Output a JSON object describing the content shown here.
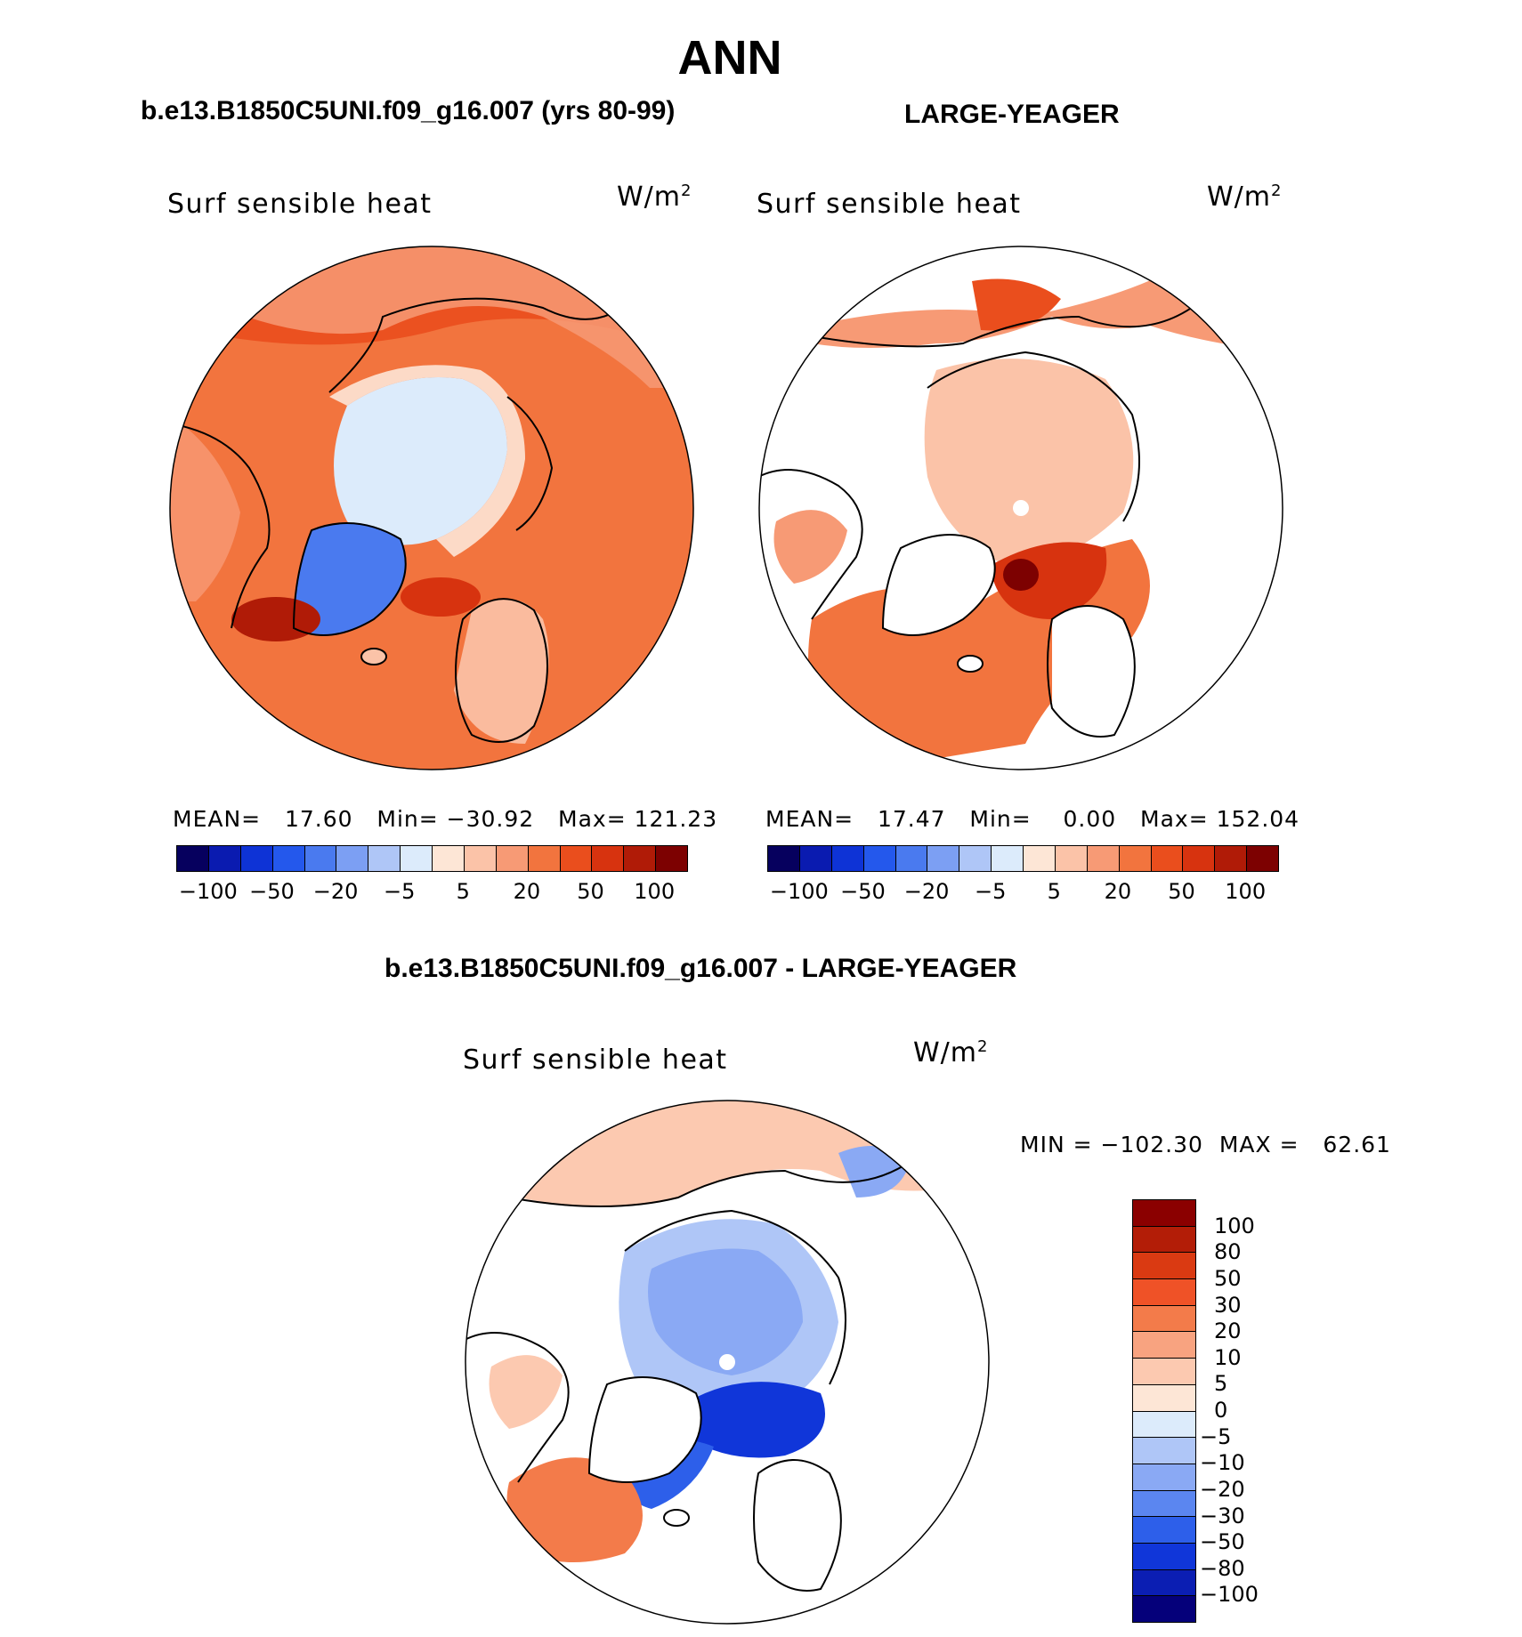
{
  "figure": {
    "title": "ANN"
  },
  "panels": [
    {
      "subtitle": "b.e13.B1850C5UNI.f09_g16.007 (yrs 80-99)",
      "field_label": "Surf sensible heat",
      "units": "W/m",
      "units_exp": "2",
      "stats": {
        "mean_label": "MEAN=",
        "mean": "17.60",
        "min_label": "Min=",
        "min": "−30.92",
        "max_label": "Max=",
        "max": "121.23"
      }
    },
    {
      "subtitle": "LARGE-YEAGER",
      "field_label": "Surf sensible heat",
      "units": "W/m",
      "units_exp": "2",
      "stats": {
        "mean_label": "MEAN=",
        "mean": "17.47",
        "min_label": "Min=",
        "min": "0.00",
        "max_label": "Max=",
        "max": "152.04"
      }
    },
    {
      "subtitle": "b.e13.B1850C5UNI.f09_g16.007 - LARGE-YEAGER",
      "field_label": "Surf sensible heat",
      "units": "W/m",
      "units_exp": "2",
      "stats": {
        "min_label": "MIN =",
        "min": "−102.30",
        "max_label": "MAX =",
        "max": "62.61"
      }
    }
  ],
  "top_colorbar": {
    "colors": [
      "#06005e",
      "#0a1bb0",
      "#0e33d6",
      "#2458ec",
      "#4a7aef",
      "#7c9ff3",
      "#afc6f7",
      "#dcebfb",
      "#fde6d6",
      "#fbc3a8",
      "#f79a75",
      "#f2743e",
      "#ea4e1d",
      "#d7330f",
      "#b01b07",
      "#7d0101"
    ],
    "tick_labels": [
      "−100",
      "−50",
      "−20",
      "−5",
      "5",
      "20",
      "50",
      "100"
    ]
  },
  "diff_colorbar": {
    "colors": [
      "#8b0000",
      "#b31d07",
      "#da3a12",
      "#ef5227",
      "#f37b4a",
      "#f8a380",
      "#fcc9b0",
      "#fde6d6",
      "#dcebfb",
      "#afc6f7",
      "#8aa9f4",
      "#5b86f0",
      "#2d5fea",
      "#1036d9",
      "#0b1eb3",
      "#05007a"
    ],
    "tick_labels": [
      "100",
      "80",
      "50",
      "30",
      "20",
      "10",
      "5",
      "0",
      "−5",
      "−10",
      "−20",
      "−30",
      "−50",
      "−80",
      "−100"
    ]
  },
  "map_colors": {
    "ocean_warm": "#f2743e",
    "ocean_hot": "#ea4e1d",
    "ocean_deep": "#d7330f",
    "land_light": "#fbc3a8",
    "ice_pale": "#dcebfb",
    "ice_cool": "#afc6f7",
    "ice_blue": "#4a7aef",
    "coast": "#000000"
  }
}
